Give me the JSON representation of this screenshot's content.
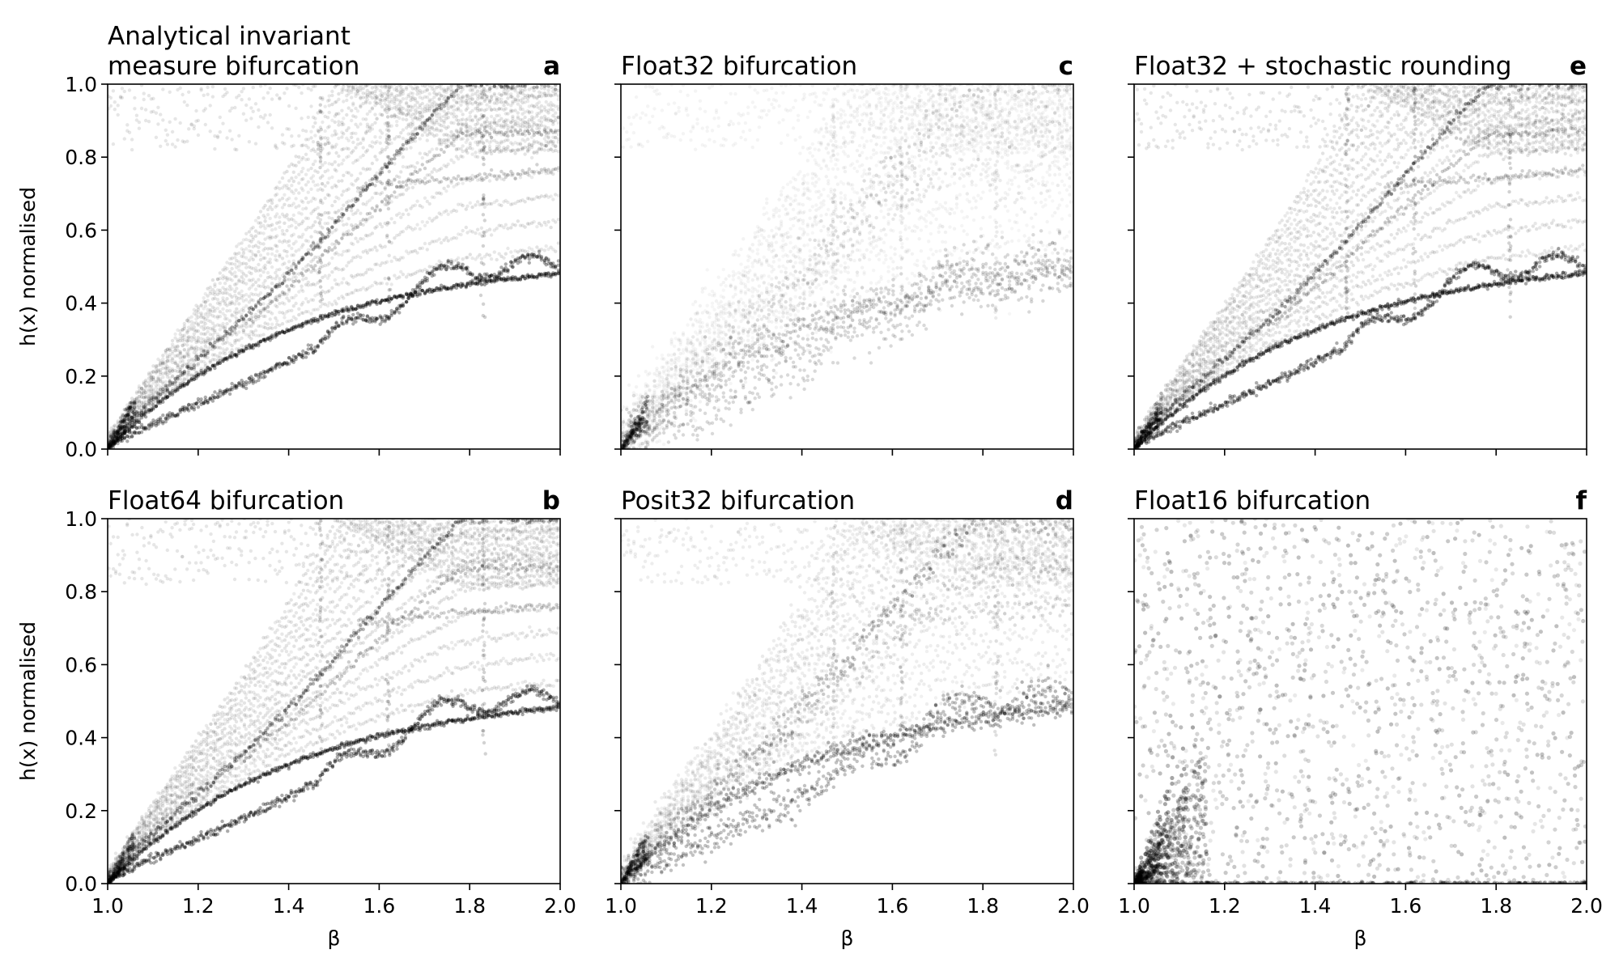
{
  "figure": {
    "background": "#ffffff",
    "point_color": "#000000"
  },
  "chart_data": [
    {
      "id": "a",
      "type": "scatter",
      "letter": "a",
      "title": "Analytical invariant\nmeasure bifurcation",
      "xlabel": "",
      "ylabel": "h(x) normalised",
      "xlim": [
        1.0,
        2.0
      ],
      "ylim": [
        0.0,
        1.0
      ],
      "xticks": [
        "1.0",
        "1.2",
        "1.4",
        "1.6",
        "1.8",
        "2.0"
      ],
      "yticks": [
        "0.0",
        "0.2",
        "0.4",
        "0.6",
        "0.8",
        "1.0"
      ],
      "show_xticklabels": false,
      "show_yticklabels": true,
      "pattern": "analytical",
      "series": [
        {
          "x": [
            1.0,
            1.2,
            1.4,
            1.6,
            1.8,
            1.98
          ],
          "values": [
            0.0,
            0.18,
            0.33,
            0.43,
            0.47,
            0.49
          ]
        },
        {
          "x": [
            1.0,
            1.2,
            1.4,
            1.6,
            1.8,
            1.98
          ],
          "values": [
            0.0,
            0.26,
            0.5,
            0.73,
            0.87,
            0.99
          ]
        }
      ]
    },
    {
      "id": "b",
      "type": "scatter",
      "letter": "b",
      "title": "Float64 bifurcation",
      "xlabel": "β",
      "ylabel": "h(x) normalised",
      "xlim": [
        1.0,
        2.0
      ],
      "ylim": [
        0.0,
        1.0
      ],
      "xticks": [
        "1.0",
        "1.2",
        "1.4",
        "1.6",
        "1.8",
        "2.0"
      ],
      "yticks": [
        "0.0",
        "0.2",
        "0.4",
        "0.6",
        "0.8",
        "1.0"
      ],
      "show_xticklabels": true,
      "show_yticklabels": true,
      "pattern": "analytical"
    },
    {
      "id": "c",
      "type": "scatter",
      "letter": "c",
      "title": "Float32 bifurcation",
      "xlabel": "",
      "ylabel": "",
      "xlim": [
        1.0,
        2.0
      ],
      "ylim": [
        0.0,
        1.0
      ],
      "xticks": [
        "1.0",
        "1.2",
        "1.4",
        "1.6",
        "1.8",
        "2.0"
      ],
      "yticks": [
        "0.0",
        "0.2",
        "0.4",
        "0.6",
        "0.8",
        "1.0"
      ],
      "show_xticklabels": false,
      "show_yticklabels": false,
      "pattern": "blurred"
    },
    {
      "id": "d",
      "type": "scatter",
      "letter": "d",
      "title": "Posit32 bifurcation",
      "xlabel": "β",
      "ylabel": "",
      "xlim": [
        1.0,
        2.0
      ],
      "ylim": [
        0.0,
        1.0
      ],
      "xticks": [
        "1.0",
        "1.2",
        "1.4",
        "1.6",
        "1.8",
        "2.0"
      ],
      "yticks": [
        "0.0",
        "0.2",
        "0.4",
        "0.6",
        "0.8",
        "1.0"
      ],
      "show_xticklabels": true,
      "show_yticklabels": false,
      "pattern": "semi"
    },
    {
      "id": "e",
      "type": "scatter",
      "letter": "e",
      "title": "Float32 + stochastic rounding",
      "xlabel": "",
      "ylabel": "",
      "xlim": [
        1.0,
        2.0
      ],
      "ylim": [
        0.0,
        1.0
      ],
      "xticks": [
        "1.0",
        "1.2",
        "1.4",
        "1.6",
        "1.8",
        "2.0"
      ],
      "yticks": [
        "0.0",
        "0.2",
        "0.4",
        "0.6",
        "0.8",
        "1.0"
      ],
      "show_xticklabels": false,
      "show_yticklabels": false,
      "pattern": "analytical"
    },
    {
      "id": "f",
      "type": "scatter",
      "letter": "f",
      "title": "Float16 bifurcation",
      "xlabel": "β",
      "ylabel": "",
      "xlim": [
        1.0,
        2.0
      ],
      "ylim": [
        0.0,
        1.0
      ],
      "xticks": [
        "1.0",
        "1.2",
        "1.4",
        "1.6",
        "1.8",
        "2.0"
      ],
      "yticks": [
        "0.0",
        "0.2",
        "0.4",
        "0.6",
        "0.8",
        "1.0"
      ],
      "show_xticklabels": true,
      "show_yticklabels": false,
      "pattern": "noise"
    }
  ]
}
